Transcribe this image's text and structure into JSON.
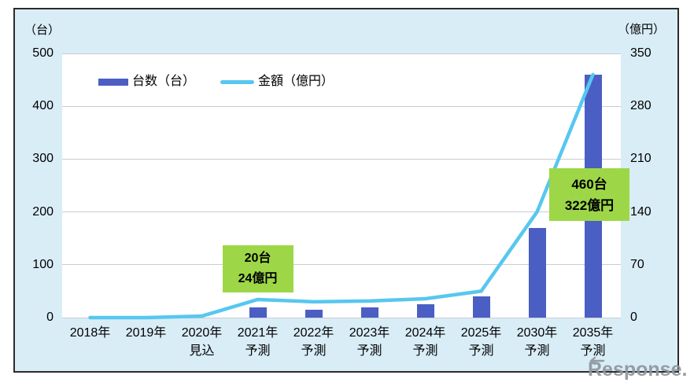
{
  "chart_data": {
    "type": "combo",
    "categories": [
      "2018年",
      "2019年",
      "2020年\n見込",
      "2021年\n予測",
      "2022年\n予測",
      "2023年\n予測",
      "2024年\n予測",
      "2025年\n予測",
      "2030年\n予測",
      "2035年\n予測"
    ],
    "series": [
      {
        "name": "台数（台）",
        "type": "bar",
        "axis": "left",
        "color": "#4A5EC4",
        "values": [
          0,
          0,
          0,
          20,
          15,
          20,
          25,
          40,
          170,
          460
        ]
      },
      {
        "name": "金額（億円）",
        "type": "line",
        "axis": "right",
        "color": "#57C7F0",
        "values": [
          0,
          0,
          2,
          24,
          21,
          22,
          25,
          35,
          140,
          322
        ]
      }
    ],
    "left_axis": {
      "title": "（台）",
      "min": 0,
      "max": 500,
      "ticks": [
        500,
        400,
        300,
        200,
        100,
        0
      ]
    },
    "right_axis": {
      "title": "（億円）",
      "min": 0,
      "max": 350,
      "ticks": [
        350,
        280,
        210,
        140,
        70,
        0
      ]
    },
    "grid": true,
    "legend_position": "top-left-inside",
    "annotations": [
      {
        "lines": [
          "20台",
          "24億円"
        ],
        "category_index": 3,
        "bg_color": "#9DD747"
      },
      {
        "lines": [
          "460台",
          "322億円"
        ],
        "category_index": 9,
        "bg_color": "#9DD747"
      }
    ]
  },
  "colors": {
    "chart_background": "#D9EDF7",
    "plot_background": "#FFFFFF",
    "gridline": "#C9CDD2",
    "border": "#2B2B2B",
    "bar": "#4A5EC4",
    "line": "#57C7F0",
    "annotation_bg": "#9DD747",
    "annotation_text": "#000000",
    "watermark": "#8F969E"
  },
  "watermark": {
    "text": "Response."
  }
}
